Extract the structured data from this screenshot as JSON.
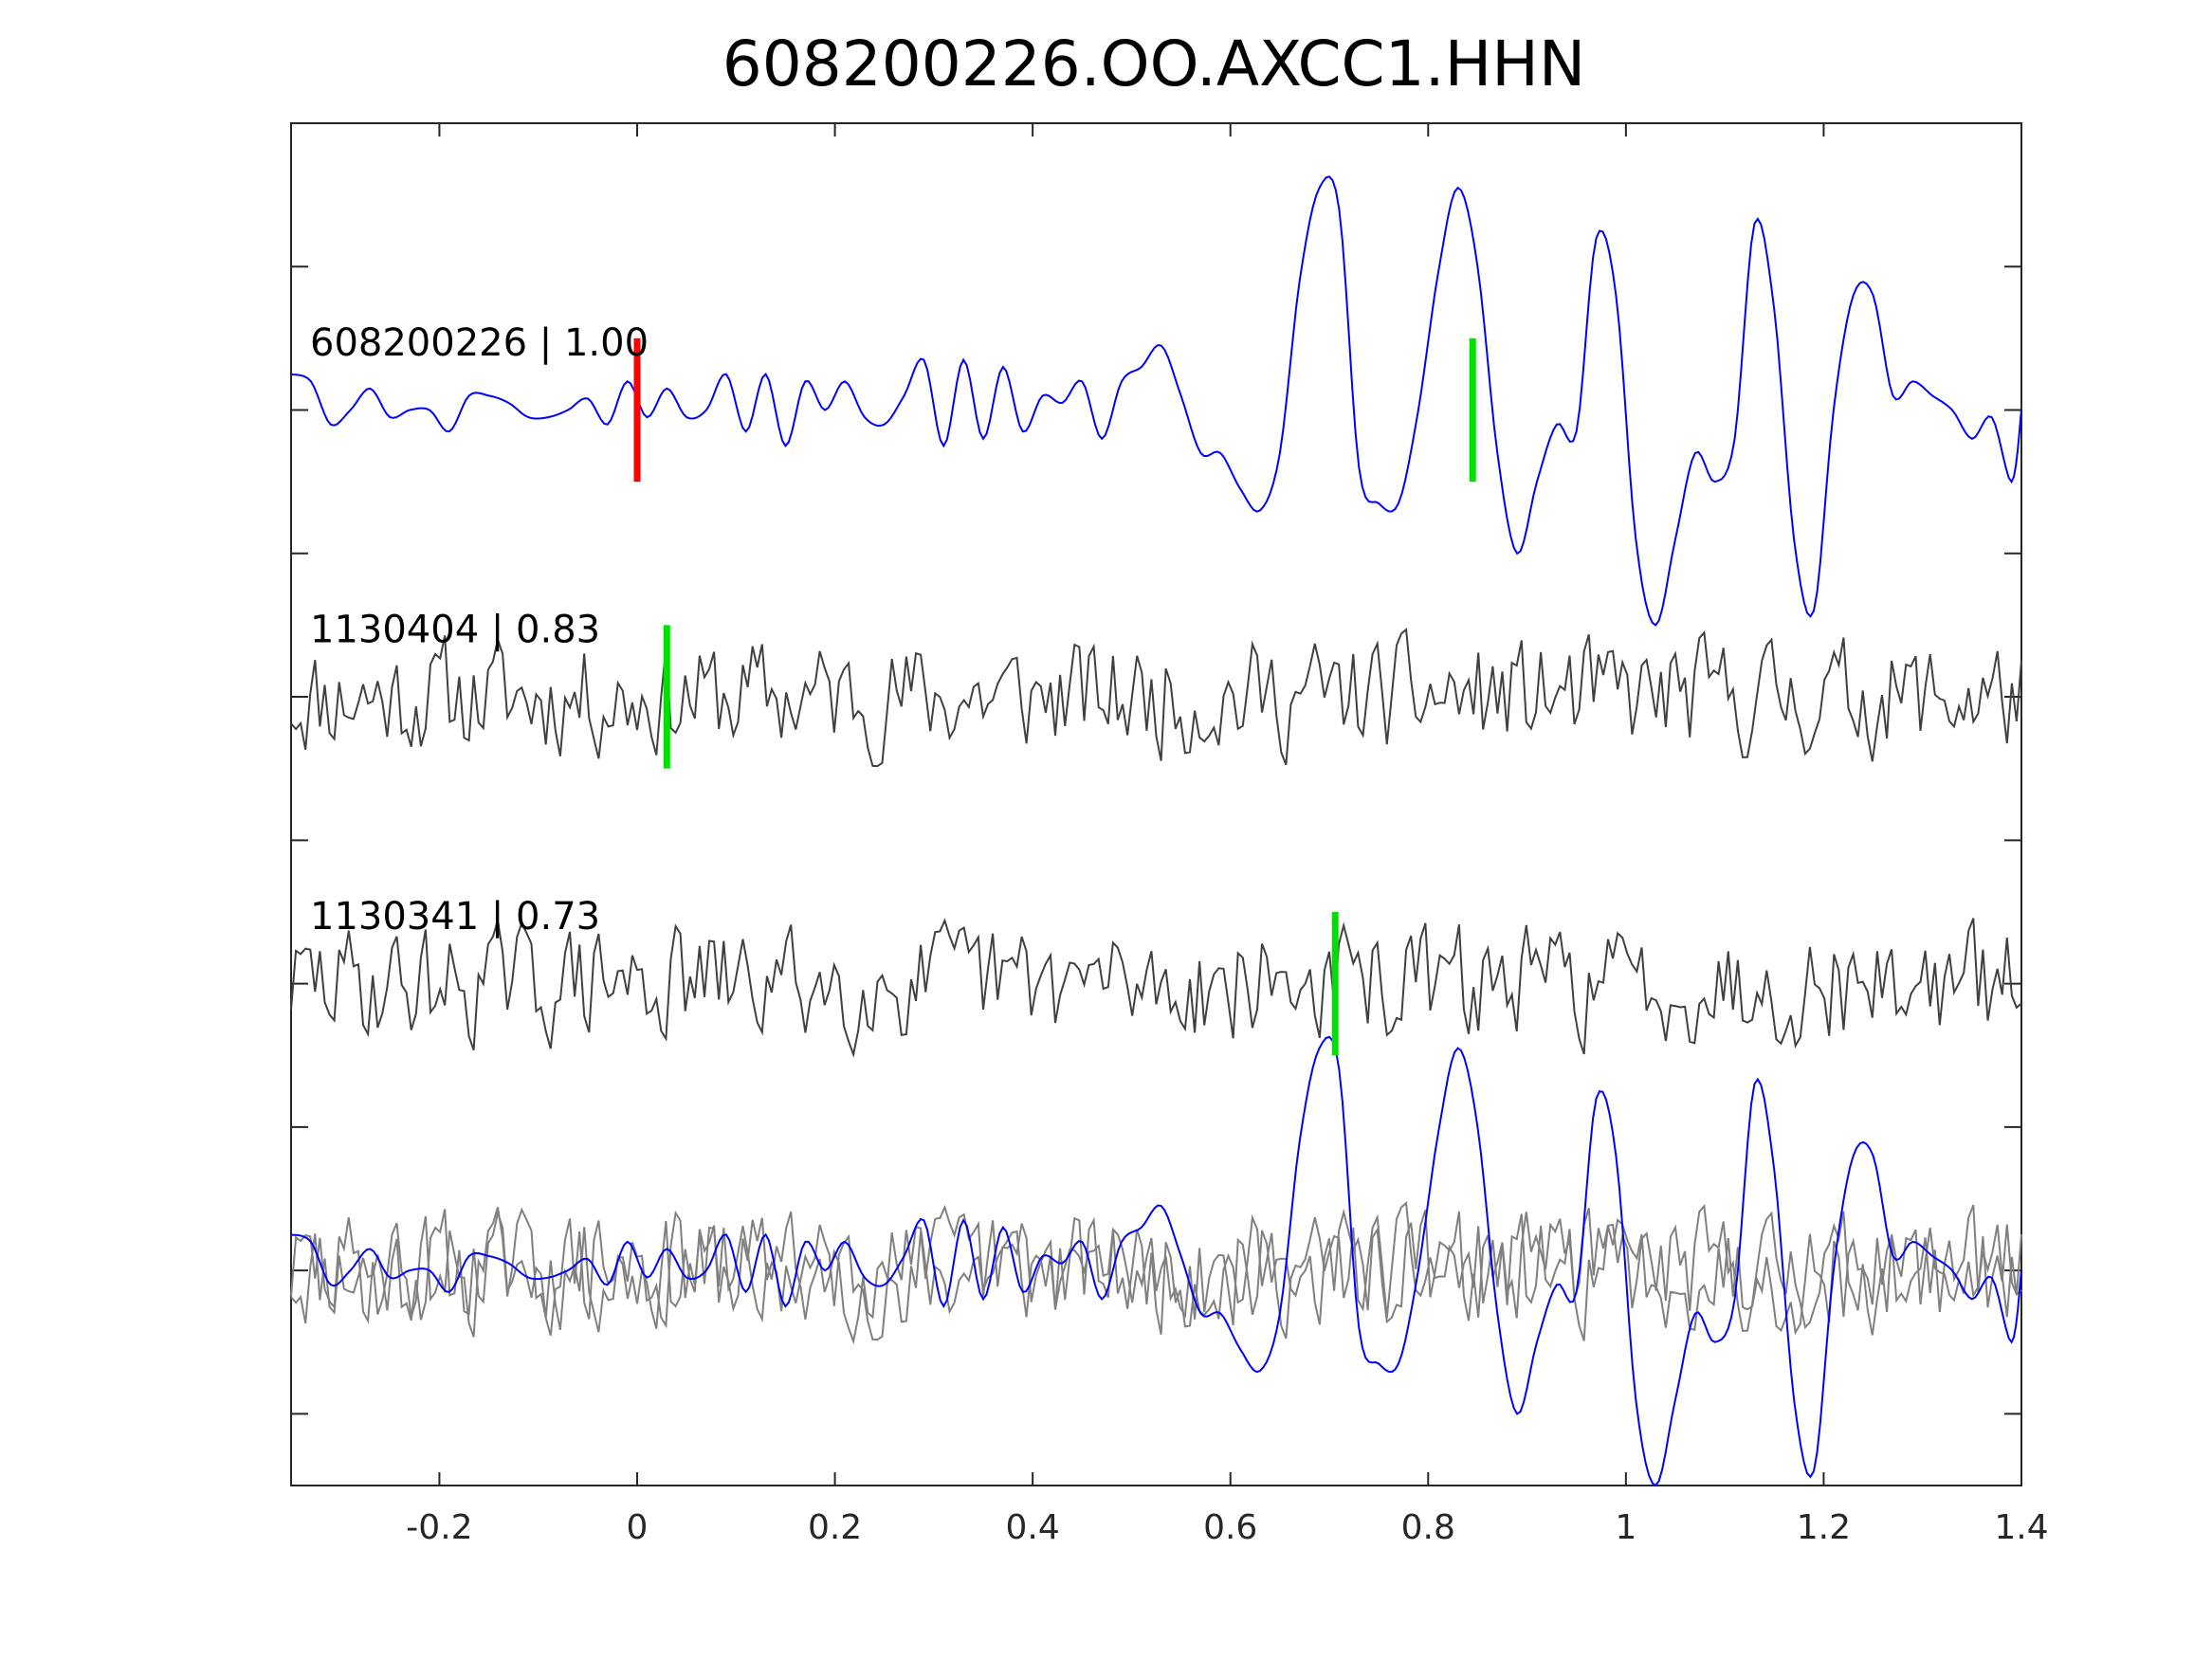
{
  "chart_data": {
    "type": "line",
    "title": "608200226.OO.AXCC1.HHN",
    "xlabel": "",
    "ylabel": "",
    "xlim": [
      -0.35,
      1.4
    ],
    "ylim": [
      0,
      9.5
    ],
    "x_ticks": [
      -0.2,
      0,
      0.2,
      0.4,
      0.6,
      0.8,
      1,
      1.2,
      1.4
    ],
    "x_tick_labels": [
      "-0.2",
      "0",
      "0.2",
      "0.4",
      "0.6",
      "0.8",
      "1",
      "1.2",
      "1.4"
    ],
    "y_ticks": [
      0.5,
      1.5,
      2.5,
      3.5,
      4.5,
      5.5,
      6.5,
      7.5,
      8.5
    ],
    "y_tick_labels": [
      "",
      "",
      "",
      "",
      "",
      "",
      "",
      "",
      ""
    ],
    "grid": false,
    "colors": {
      "reference_trace": "#0000ff",
      "neighbor_trace": "#404040",
      "overlay_neighbor_trace": "#808080",
      "origin_marker": "#ff0000",
      "pick_marker": "#00e000",
      "axes": "#262626"
    },
    "traces": [
      {
        "label": "608200226 | 1.00",
        "baseline": 7.5,
        "color": "#0000ff",
        "x": [
          -0.35,
          -0.33,
          -0.31,
          -0.29,
          -0.27,
          -0.25,
          -0.23,
          -0.21,
          -0.19,
          -0.17,
          -0.15,
          -0.13,
          -0.11,
          -0.09,
          -0.07,
          -0.05,
          -0.03,
          -0.01,
          0.01,
          0.03,
          0.05,
          0.07,
          0.09,
          0.11,
          0.13,
          0.15,
          0.17,
          0.19,
          0.21,
          0.23,
          0.25,
          0.27,
          0.29,
          0.31,
          0.33,
          0.35,
          0.37,
          0.39,
          0.41,
          0.43,
          0.45,
          0.47,
          0.49,
          0.51,
          0.53,
          0.55,
          0.57,
          0.59,
          0.61,
          0.63,
          0.65,
          0.67,
          0.69,
          0.71,
          0.73,
          0.75,
          0.77,
          0.79,
          0.81,
          0.83,
          0.85,
          0.87,
          0.89,
          0.91,
          0.93,
          0.95,
          0.97,
          0.99,
          1.01,
          1.03,
          1.05,
          1.07,
          1.09,
          1.11,
          1.13,
          1.15,
          1.17,
          1.19,
          1.21,
          1.23,
          1.25,
          1.27,
          1.29,
          1.31,
          1.33,
          1.35,
          1.37,
          1.39,
          1.4
        ],
        "y": [
          7.75,
          7.7,
          7.4,
          7.5,
          7.65,
          7.45,
          7.5,
          7.5,
          7.35,
          7.6,
          7.6,
          7.55,
          7.45,
          7.45,
          7.5,
          7.58,
          7.4,
          7.7,
          7.45,
          7.65,
          7.45,
          7.5,
          7.75,
          7.35,
          7.75,
          7.25,
          7.7,
          7.5,
          7.7,
          7.45,
          7.4,
          7.6,
          7.85,
          7.25,
          7.85,
          7.3,
          7.8,
          7.35,
          7.6,
          7.55,
          7.7,
          7.3,
          7.7,
          7.8,
          7.95,
          7.6,
          7.2,
          7.2,
          6.95,
          6.8,
          7.2,
          8.4,
          9.05,
          8.9,
          7.1,
          6.85,
          6.85,
          7.5,
          8.45,
          9.05,
          8.5,
          7.2,
          6.5,
          7.0,
          7.4,
          7.35,
          8.7,
          8.3,
          6.6,
          6.0,
          6.6,
          7.2,
          7.0,
          7.3,
          8.8,
          8.2,
          6.6,
          6.1,
          7.5,
          8.3,
          8.3,
          7.6,
          7.7,
          7.6,
          7.5,
          7.3,
          7.45,
          7.0,
          7.5
        ],
        "marker_labels": []
      },
      {
        "label": "1130404 | 0.83",
        "baseline": 5.5,
        "color": "#404040",
        "marker_labels": []
      },
      {
        "label": "1130341 | 0.73",
        "baseline": 3.5,
        "color": "#404040",
        "marker_labels": []
      },
      {
        "label": "",
        "baseline": 1.5,
        "color": "#808080",
        "marker_labels": []
      }
    ],
    "markers": [
      {
        "trace": 0,
        "x": 0.0,
        "type": "origin",
        "color": "#ff0000"
      },
      {
        "trace": 0,
        "x": 0.845,
        "type": "pick",
        "color": "#00e000"
      },
      {
        "trace": 1,
        "x": 0.03,
        "type": "pick",
        "color": "#00e000"
      },
      {
        "trace": 2,
        "x": 0.706,
        "type": "pick",
        "color": "#00e000"
      }
    ]
  }
}
